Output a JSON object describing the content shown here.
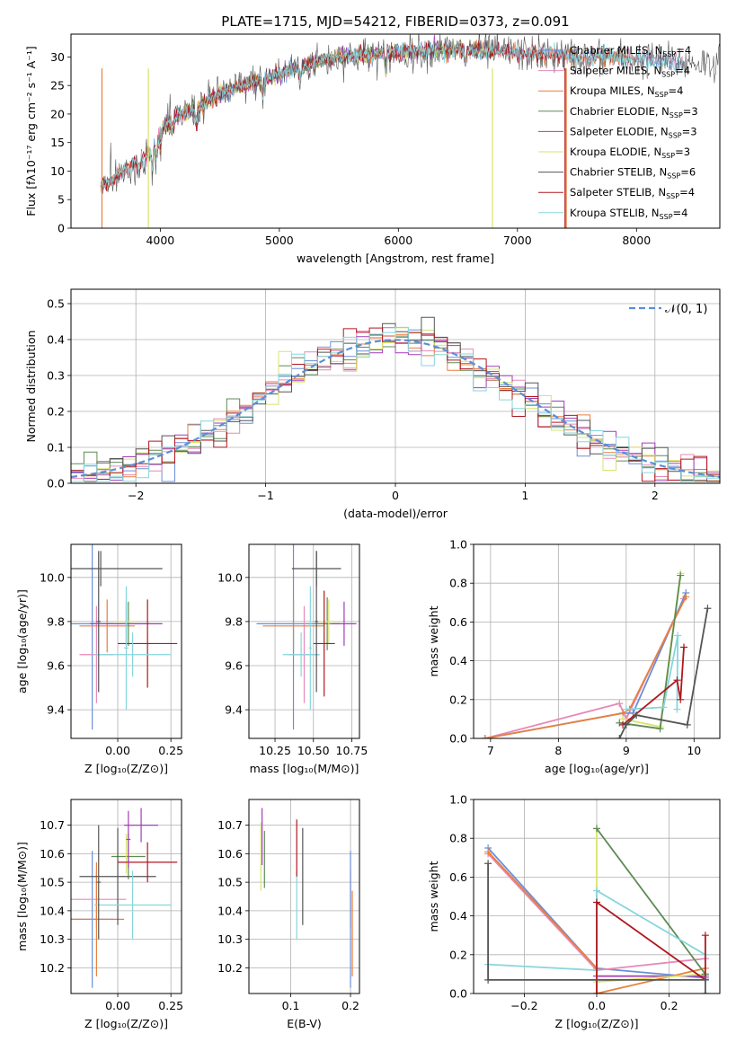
{
  "figure": {
    "title": "PLATE=1715, MJD=54212, FIBERID=0373, z=0.091"
  },
  "palette": {
    "chabrier_miles": "#6a8fd8",
    "salpeter_miles": "#e68ab8",
    "kroupa_miles": "#e97f3b",
    "chabrier_elodie": "#5e8c55",
    "salpeter_elodie": "#a23db8",
    "kroupa_elodie": "#d9e36b",
    "chabrier_stelib": "#555555",
    "salpeter_stelib": "#b0171f",
    "kroupa_stelib": "#86d6dc",
    "normal_curve": "#5a8fd8"
  },
  "chart_data": [
    {
      "id": "spectrum",
      "type": "line",
      "xlabel": "wavelength [Angstrom, rest frame]",
      "ylabel": "Flux [fλ10⁻¹⁷ erg cm⁻² s⁻¹ A⁻¹]",
      "xlim": [
        3250,
        8700
      ],
      "ylim": [
        0,
        34
      ],
      "xticks": [
        4000,
        5000,
        6000,
        7000,
        8000
      ],
      "yticks": [
        0,
        5,
        10,
        15,
        20,
        25,
        30
      ],
      "grid": false,
      "legend_position": "right",
      "continuum": {
        "x": [
          3500,
          3600,
          3700,
          3800,
          3900,
          4000,
          4100,
          4300,
          4500,
          4700,
          5000,
          5200,
          5500,
          5800,
          6000,
          6300,
          6600,
          6900,
          7200,
          7500,
          7800,
          8100,
          8400
        ],
        "y": [
          7.5,
          8.5,
          10,
          11.5,
          13,
          17,
          19,
          21,
          23.5,
          25,
          27,
          28.5,
          30,
          30.5,
          30.8,
          31.3,
          31.2,
          30.8,
          30.5,
          30,
          30,
          29.5,
          29
        ]
      },
      "series": [
        {
          "name": "Chabrier MILES, N_SSP=4",
          "color_key": "chabrier_miles",
          "xrange": [
            3500,
            8400
          ]
        },
        {
          "name": "Salpeter MILES, N_SSP=4",
          "color_key": "salpeter_miles",
          "xrange": [
            3500,
            8400
          ]
        },
        {
          "name": "Kroupa MILES, N_SSP=4",
          "color_key": "kroupa_miles",
          "xrange": [
            3500,
            8000
          ]
        },
        {
          "name": "Chabrier ELODIE, N_SSP=3",
          "color_key": "chabrier_elodie",
          "xrange": [
            4000,
            6800
          ]
        },
        {
          "name": "Salpeter ELODIE, N_SSP=3",
          "color_key": "salpeter_elodie",
          "xrange": [
            4000,
            6800
          ]
        },
        {
          "name": "Kroupa ELODIE, N_SSP=3",
          "color_key": "kroupa_elodie",
          "xrange": [
            3900,
            6800
          ]
        },
        {
          "name": "Chabrier STELIB, N_SSP=6",
          "color_key": "chabrier_stelib",
          "xrange": [
            3500,
            8700
          ]
        },
        {
          "name": "Salpeter STELIB, N_SSP=4",
          "color_key": "salpeter_stelib",
          "xrange": [
            3500,
            7400
          ]
        },
        {
          "name": "Kroupa STELIB, N_SSP=4",
          "color_key": "kroupa_stelib",
          "xrange": [
            3500,
            8400
          ]
        }
      ],
      "spikes": [
        {
          "x": 3900,
          "color_key": "kroupa_elodie"
        },
        {
          "x": 6790,
          "color_key": "kroupa_elodie"
        },
        {
          "x": 7400,
          "color_key": "salpeter_stelib"
        },
        {
          "x": 7410,
          "color_key": "kroupa_miles"
        },
        {
          "x": 3510,
          "color_key": "kroupa_miles"
        }
      ]
    },
    {
      "id": "residuals",
      "type": "histogram",
      "xlabel": "(data-model)/error",
      "ylabel": "Normed distribution",
      "xlim": [
        -2.5,
        2.5
      ],
      "ylim": [
        0,
        0.54
      ],
      "xticks": [
        -2,
        -1,
        0,
        1,
        2
      ],
      "yticks": [
        0.0,
        0.1,
        0.2,
        0.3,
        0.4,
        0.5
      ],
      "grid": true,
      "legend_position": "top-right",
      "normal_legend": "𝒩(0, 1)",
      "bin_width": 0.1,
      "bin_start": -2.5
    },
    {
      "id": "z_age",
      "type": "errorbar",
      "xlabel": "Z [log₁₀(Z/Z⊙)]",
      "ylabel": "age  [log₁₀(age/yr)]",
      "xlim": [
        -0.22,
        0.3
      ],
      "ylim": [
        9.27,
        10.15
      ],
      "xticks": [
        0.0,
        0.25
      ],
      "xtick_labels": [
        "0.00",
        "0.25"
      ],
      "yticks": [
        9.4,
        9.6,
        9.8,
        10.0
      ],
      "grid": true,
      "points": [
        {
          "color_key": "chabrier_miles",
          "x": -0.12,
          "xerr": 0.1,
          "y": 9.79,
          "yerr": 0.48
        },
        {
          "color_key": "salpeter_miles",
          "x": -0.1,
          "xerr": 0.08,
          "y": 9.65,
          "yerr": 0.22
        },
        {
          "color_key": "kroupa_miles",
          "x": -0.05,
          "xerr": 0.13,
          "y": 9.78,
          "yerr": 0.12
        },
        {
          "color_key": "chabrier_elodie",
          "x": 0.05,
          "xerr": 0.1,
          "y": 9.79,
          "yerr": 0.1
        },
        {
          "color_key": "salpeter_elodie",
          "x": 0.04,
          "xerr": 0.17,
          "y": 9.79,
          "yerr": 0.1
        },
        {
          "color_key": "kroupa_elodie",
          "x": 0.04,
          "xerr": 0.05,
          "y": 9.8,
          "yerr": 0.1
        },
        {
          "color_key": "chabrier_stelib",
          "x": -0.08,
          "xerr": 0.29,
          "y": 10.04,
          "yerr": 0.08
        },
        {
          "color_key": "salpeter_stelib",
          "x": 0.14,
          "xerr": 0.14,
          "y": 9.7,
          "yerr": 0.2
        },
        {
          "color_key": "kroupa_stelib",
          "x": 0.07,
          "xerr": 0.18,
          "y": 9.65,
          "yerr": 0.1
        },
        {
          "color_key": "chabrier_stelib",
          "x": -0.09,
          "xerr": 0.01,
          "y": 9.8,
          "yerr": 0.32
        },
        {
          "color_key": "kroupa_stelib",
          "x": 0.04,
          "xerr": 0.01,
          "y": 9.68,
          "yerr": 0.28
        }
      ]
    },
    {
      "id": "mass_age",
      "type": "errorbar",
      "xlabel": "mass [log₁₀(M/M⊙)]",
      "ylabel": "",
      "xlim": [
        10.08,
        10.8
      ],
      "ylim": [
        9.27,
        10.15
      ],
      "xticks": [
        10.25,
        10.5,
        10.75
      ],
      "xtick_labels": [
        "10.25",
        "10.50",
        "10.75"
      ],
      "yticks": [
        9.4,
        9.6,
        9.8,
        10.0
      ],
      "grid": true,
      "points": [
        {
          "color_key": "chabrier_miles",
          "x": 10.37,
          "xerr": 0.24,
          "y": 9.79,
          "yerr": 0.48
        },
        {
          "color_key": "salpeter_miles",
          "x": 10.44,
          "xerr": 0.1,
          "y": 9.65,
          "yerr": 0.22
        },
        {
          "color_key": "kroupa_miles",
          "x": 10.37,
          "xerr": 0.2,
          "y": 9.78,
          "yerr": 0.12
        },
        {
          "color_key": "chabrier_elodie",
          "x": 10.59,
          "xerr": 0.08,
          "y": 9.79,
          "yerr": 0.12
        },
        {
          "color_key": "salpeter_elodie",
          "x": 10.7,
          "xerr": 0.08,
          "y": 9.79,
          "yerr": 0.1
        },
        {
          "color_key": "kroupa_elodie",
          "x": 10.6,
          "xerr": 0.06,
          "y": 9.8,
          "yerr": 0.1
        },
        {
          "color_key": "chabrier_stelib",
          "x": 10.52,
          "xerr": 0.16,
          "y": 10.04,
          "yerr": 0.08
        },
        {
          "color_key": "salpeter_stelib",
          "x": 10.57,
          "xerr": 0.07,
          "y": 9.7,
          "yerr": 0.24
        },
        {
          "color_key": "kroupa_stelib",
          "x": 10.42,
          "xerr": 0.12,
          "y": 9.65,
          "yerr": 0.1
        },
        {
          "color_key": "chabrier_stelib",
          "x": 10.52,
          "xerr": 0.01,
          "y": 9.8,
          "yerr": 0.32
        },
        {
          "color_key": "kroupa_stelib",
          "x": 10.48,
          "xerr": 0.01,
          "y": 9.68,
          "yerr": 0.28
        }
      ]
    },
    {
      "id": "age_weight",
      "type": "line",
      "xlabel": "age  [log₁₀(age/yr)]",
      "ylabel": "mass weight",
      "xlim": [
        6.75,
        10.38
      ],
      "ylim": [
        0,
        1.0
      ],
      "xticks": [
        7,
        8,
        9,
        10
      ],
      "yticks": [
        0.0,
        0.2,
        0.4,
        0.6,
        0.8,
        1.0
      ],
      "grid": true,
      "series": [
        {
          "color_key": "salpeter_miles",
          "x": [
            6.92,
            8.9,
            9.0,
            9.85
          ],
          "y": [
            0.0,
            0.18,
            0.1,
            0.72
          ]
        },
        {
          "color_key": "chabrier_miles",
          "x": [
            6.92,
            8.95,
            9.1,
            9.88
          ],
          "y": [
            0.0,
            0.13,
            0.13,
            0.75
          ]
        },
        {
          "color_key": "kroupa_miles",
          "x": [
            6.92,
            8.95,
            9.05,
            9.88
          ],
          "y": [
            0.0,
            0.13,
            0.15,
            0.73
          ]
        },
        {
          "color_key": "kroupa_elodie",
          "x": [
            8.95,
            9.5,
            9.8
          ],
          "y": [
            0.1,
            0.06,
            0.85
          ]
        },
        {
          "color_key": "chabrier_elodie",
          "x": [
            8.9,
            9.5,
            9.8
          ],
          "y": [
            0.08,
            0.05,
            0.84
          ]
        },
        {
          "color_key": "kroupa_stelib",
          "x": [
            9.0,
            9.55,
            9.76,
            9.75
          ],
          "y": [
            0.15,
            0.16,
            0.53,
            0.15
          ]
        },
        {
          "color_key": "salpeter_stelib",
          "x": [
            8.95,
            9.75,
            9.8,
            9.85
          ],
          "y": [
            0.07,
            0.3,
            0.2,
            0.47
          ]
        },
        {
          "color_key": "chabrier_stelib",
          "x": [
            8.9,
            9.0,
            9.15,
            9.9,
            10.2
          ],
          "y": [
            0.0,
            0.07,
            0.12,
            0.07,
            0.67
          ]
        }
      ]
    },
    {
      "id": "z_mass",
      "type": "errorbar",
      "xlabel": "Z [log₁₀(Z/Z⊙)]",
      "ylabel": "mass [log₁₀(M/M⊙)]",
      "xlim": [
        -0.22,
        0.3
      ],
      "ylim": [
        10.11,
        10.79
      ],
      "xticks": [
        0.0,
        0.25
      ],
      "xtick_labels": [
        "0.00",
        "0.25"
      ],
      "yticks": [
        10.2,
        10.3,
        10.4,
        10.5,
        10.6,
        10.7
      ],
      "grid": true,
      "points": [
        {
          "color_key": "chabrier_miles",
          "x": -0.12,
          "xerr": 0.1,
          "y": 10.37,
          "yerr": 0.24
        },
        {
          "color_key": "salpeter_miles",
          "x": -0.1,
          "xerr": 0.14,
          "y": 10.44,
          "yerr": 0.1
        },
        {
          "color_key": "kroupa_miles",
          "x": -0.1,
          "xerr": 0.13,
          "y": 10.37,
          "yerr": 0.2
        },
        {
          "color_key": "chabrier_elodie",
          "x": 0.05,
          "xerr": 0.08,
          "y": 10.59,
          "yerr": 0.08
        },
        {
          "color_key": "salpeter_elodie",
          "x": 0.11,
          "xerr": 0.08,
          "y": 10.7,
          "yerr": 0.06
        },
        {
          "color_key": "kroupa_elodie",
          "x": 0.04,
          "xerr": 0.05,
          "y": 10.6,
          "yerr": 0.07
        },
        {
          "color_key": "chabrier_stelib",
          "x": 0.0,
          "xerr": 0.18,
          "y": 10.52,
          "yerr": 0.17
        },
        {
          "color_key": "salpeter_stelib",
          "x": 0.14,
          "xerr": 0.14,
          "y": 10.57,
          "yerr": 0.07
        },
        {
          "color_key": "kroupa_stelib",
          "x": 0.07,
          "xerr": 0.18,
          "y": 10.42,
          "yerr": 0.12
        },
        {
          "color_key": "chabrier_stelib",
          "x": -0.09,
          "xerr": 0.01,
          "y": 10.5,
          "yerr": 0.2
        },
        {
          "color_key": "salpeter_elodie",
          "x": 0.05,
          "xerr": 0.01,
          "y": 10.65,
          "yerr": 0.1
        }
      ]
    },
    {
      "id": "ebv_mass",
      "type": "errorbar",
      "xlabel": "E(B-V)",
      "ylabel": "",
      "xlim": [
        0.03,
        0.215
      ],
      "ylim": [
        10.11,
        10.79
      ],
      "xticks": [
        0.1,
        0.2
      ],
      "xtick_labels": [
        "0.1",
        "0.2"
      ],
      "yticks": [
        10.2,
        10.3,
        10.4,
        10.5,
        10.6,
        10.7
      ],
      "grid": true,
      "points": [
        {
          "color_key": "kroupa_elodie",
          "x": 0.05,
          "xerr": 0.0,
          "y": 10.59,
          "yerr": 0.12
        },
        {
          "color_key": "salpeter_elodie",
          "x": 0.052,
          "xerr": 0.0,
          "y": 10.66,
          "yerr": 0.1
        },
        {
          "color_key": "chabrier_elodie",
          "x": 0.056,
          "xerr": 0.0,
          "y": 10.58,
          "yerr": 0.1
        },
        {
          "color_key": "kroupa_stelib",
          "x": 0.11,
          "xerr": 0.0,
          "y": 10.42,
          "yerr": 0.12
        },
        {
          "color_key": "salpeter_stelib",
          "x": 0.11,
          "xerr": 0.0,
          "y": 10.62,
          "yerr": 0.1
        },
        {
          "color_key": "chabrier_stelib",
          "x": 0.12,
          "xerr": 0.0,
          "y": 10.52,
          "yerr": 0.17
        },
        {
          "color_key": "salpeter_miles",
          "x": 0.2,
          "xerr": 0.0,
          "y": 10.44,
          "yerr": 0.1
        },
        {
          "color_key": "kroupa_miles",
          "x": 0.203,
          "xerr": 0.0,
          "y": 10.32,
          "yerr": 0.15
        },
        {
          "color_key": "chabrier_miles",
          "x": 0.2,
          "xerr": 0.0,
          "y": 10.37,
          "yerr": 0.24
        }
      ]
    },
    {
      "id": "z_weight",
      "type": "line",
      "xlabel": "Z [log₁₀(Z/Z⊙)]",
      "ylabel": "mass weight",
      "xlim": [
        -0.34,
        0.34
      ],
      "ylim": [
        0,
        1.0
      ],
      "xticks": [
        -0.2,
        0.0,
        0.2
      ],
      "xtick_labels": [
        "−0.2",
        "0.0",
        "0.2"
      ],
      "yticks": [
        0.0,
        0.2,
        0.4,
        0.6,
        0.8,
        1.0
      ],
      "grid": true,
      "series": [
        {
          "color_key": "chabrier_miles",
          "x": [
            -0.3,
            0.0,
            0.3
          ],
          "y": [
            0.75,
            0.13,
            0.08
          ]
        },
        {
          "color_key": "salpeter_miles",
          "x": [
            -0.3,
            0.0,
            0.3
          ],
          "y": [
            0.72,
            0.12,
            0.18
          ]
        },
        {
          "color_key": "kroupa_miles",
          "x": [
            -0.3,
            0.0,
            0.0,
            0.3
          ],
          "y": [
            0.73,
            0.13,
            0.0,
            0.13
          ]
        },
        {
          "color_key": "salpeter_elodie",
          "x": [
            0.0,
            0.3
          ],
          "y": [
            0.09,
            0.09
          ]
        },
        {
          "color_key": "kroupa_elodie",
          "x": [
            0.0,
            0.0,
            0.3
          ],
          "y": [
            0.85,
            0.06,
            0.1
          ]
        },
        {
          "color_key": "chabrier_elodie",
          "x": [
            0.0,
            0.3
          ],
          "y": [
            0.85,
            0.1
          ]
        },
        {
          "color_key": "kroupa_stelib",
          "x": [
            -0.3,
            0.0,
            0.0,
            0.3
          ],
          "y": [
            0.15,
            0.12,
            0.53,
            0.2
          ]
        },
        {
          "color_key": "salpeter_stelib",
          "x": [
            0.0,
            0.0,
            0.3,
            0.3
          ],
          "y": [
            0.0,
            0.47,
            0.07,
            0.3
          ]
        },
        {
          "color_key": "chabrier_stelib",
          "x": [
            -0.3,
            -0.3,
            0.3,
            0.3
          ],
          "y": [
            0.67,
            0.07,
            0.07,
            0.0
          ]
        }
      ]
    }
  ]
}
